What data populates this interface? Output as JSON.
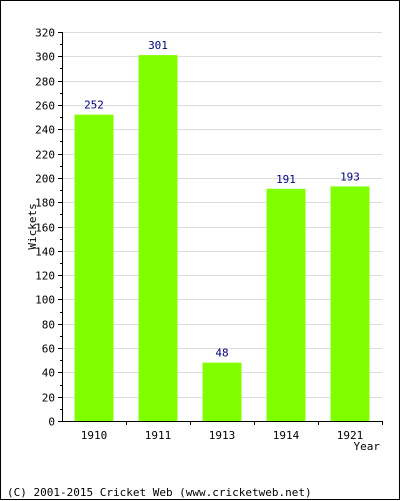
{
  "chart_data": {
    "type": "bar",
    "categories": [
      "1910",
      "1911",
      "1913",
      "1914",
      "1921"
    ],
    "series": [
      {
        "values": [
          252,
          301,
          48,
          191,
          193
        ]
      }
    ],
    "xlabel": "Year",
    "ylabel": "Wickets",
    "ylim": [
      0,
      320
    ],
    "yticks": [
      0,
      20,
      40,
      60,
      80,
      100,
      120,
      140,
      160,
      180,
      200,
      220,
      240,
      260,
      280,
      300,
      320
    ],
    "grid": true,
    "bar_color": "#80ff00",
    "label_color": "#000080"
  },
  "footer": "(C) 2001-2015 Cricket Web (www.cricketweb.net)"
}
